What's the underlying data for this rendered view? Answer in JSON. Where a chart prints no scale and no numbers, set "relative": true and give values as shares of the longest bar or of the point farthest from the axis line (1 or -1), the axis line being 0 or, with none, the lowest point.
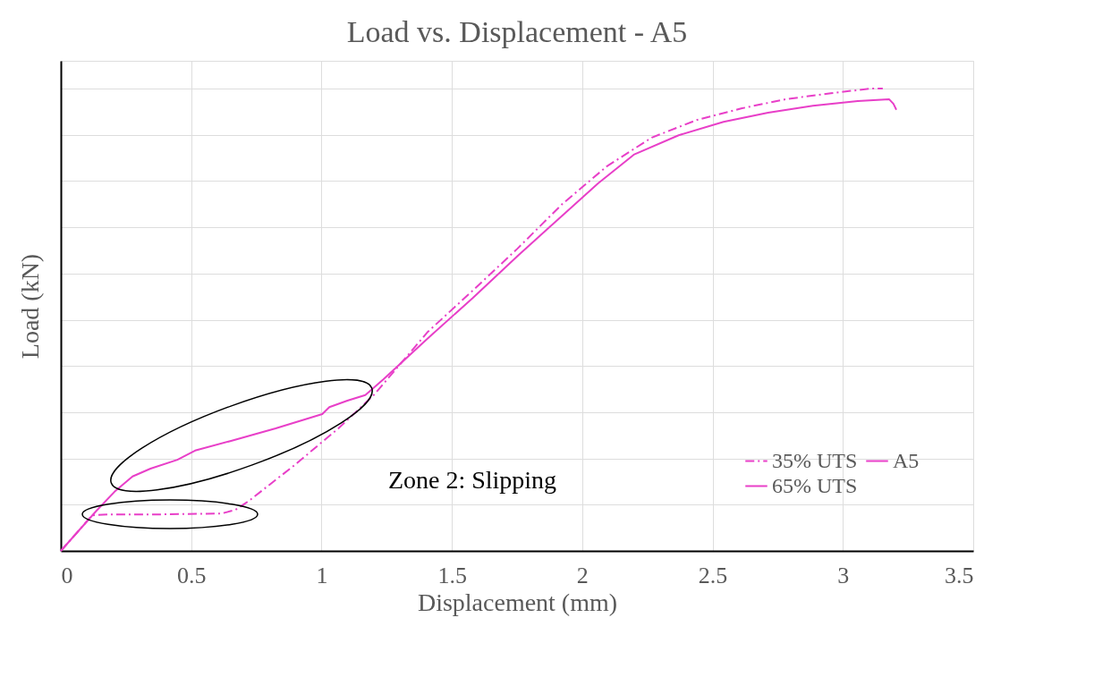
{
  "chart_data": {
    "type": "line",
    "title": "Load vs. Displacement - A5",
    "xlabel": "Displacement (mm)",
    "ylabel": "Load (kN)",
    "relative": true,
    "xlim": [
      0,
      3.5
    ],
    "xticks": [
      0,
      0.5,
      1,
      1.5,
      2,
      2.5,
      3,
      3.5
    ],
    "grid": true,
    "legend": "bottom right",
    "legend_title": "A5",
    "annotations": [
      "Zone 2: Slipping"
    ],
    "series": [
      {
        "name": "35% UTS",
        "color": "#e83fc8",
        "line_style": "dashdot",
        "x": [
          0,
          0.069,
          0.12,
          0.189,
          0.378,
          0.618,
          0.67,
          0.721,
          0.893,
          1.065,
          1.202,
          1.408,
          1.58,
          1.752,
          1.923,
          2.095,
          2.267,
          2.439,
          2.61,
          2.782,
          2.954,
          3.108,
          3.153
        ],
        "values": [
          0,
          0.044,
          0.077,
          0.079,
          0.079,
          0.081,
          0.089,
          0.108,
          0.184,
          0.265,
          0.338,
          0.474,
          0.563,
          0.654,
          0.75,
          0.832,
          0.894,
          0.932,
          0.957,
          0.977,
          0.99,
          1.0,
          1.0
        ]
      },
      {
        "name": "65% UTS",
        "color": "#e83fc8",
        "line_style": "solid",
        "x": [
          0,
          0.069,
          0.137,
          0.206,
          0.275,
          0.344,
          0.447,
          0.515,
          0.653,
          0.824,
          1.003,
          1.03,
          1.099,
          1.168,
          1.237,
          1.408,
          1.58,
          1.752,
          1.923,
          2.061,
          2.198,
          2.37,
          2.542,
          2.713,
          2.885,
          3.057,
          3.177,
          3.194,
          3.205
        ],
        "values": [
          0,
          0.044,
          0.087,
          0.128,
          0.161,
          0.178,
          0.197,
          0.217,
          0.238,
          0.265,
          0.296,
          0.311,
          0.325,
          0.337,
          0.371,
          0.46,
          0.547,
          0.638,
          0.725,
          0.795,
          0.857,
          0.899,
          0.928,
          0.948,
          0.963,
          0.973,
          0.977,
          0.967,
          0.954
        ]
      }
    ]
  }
}
